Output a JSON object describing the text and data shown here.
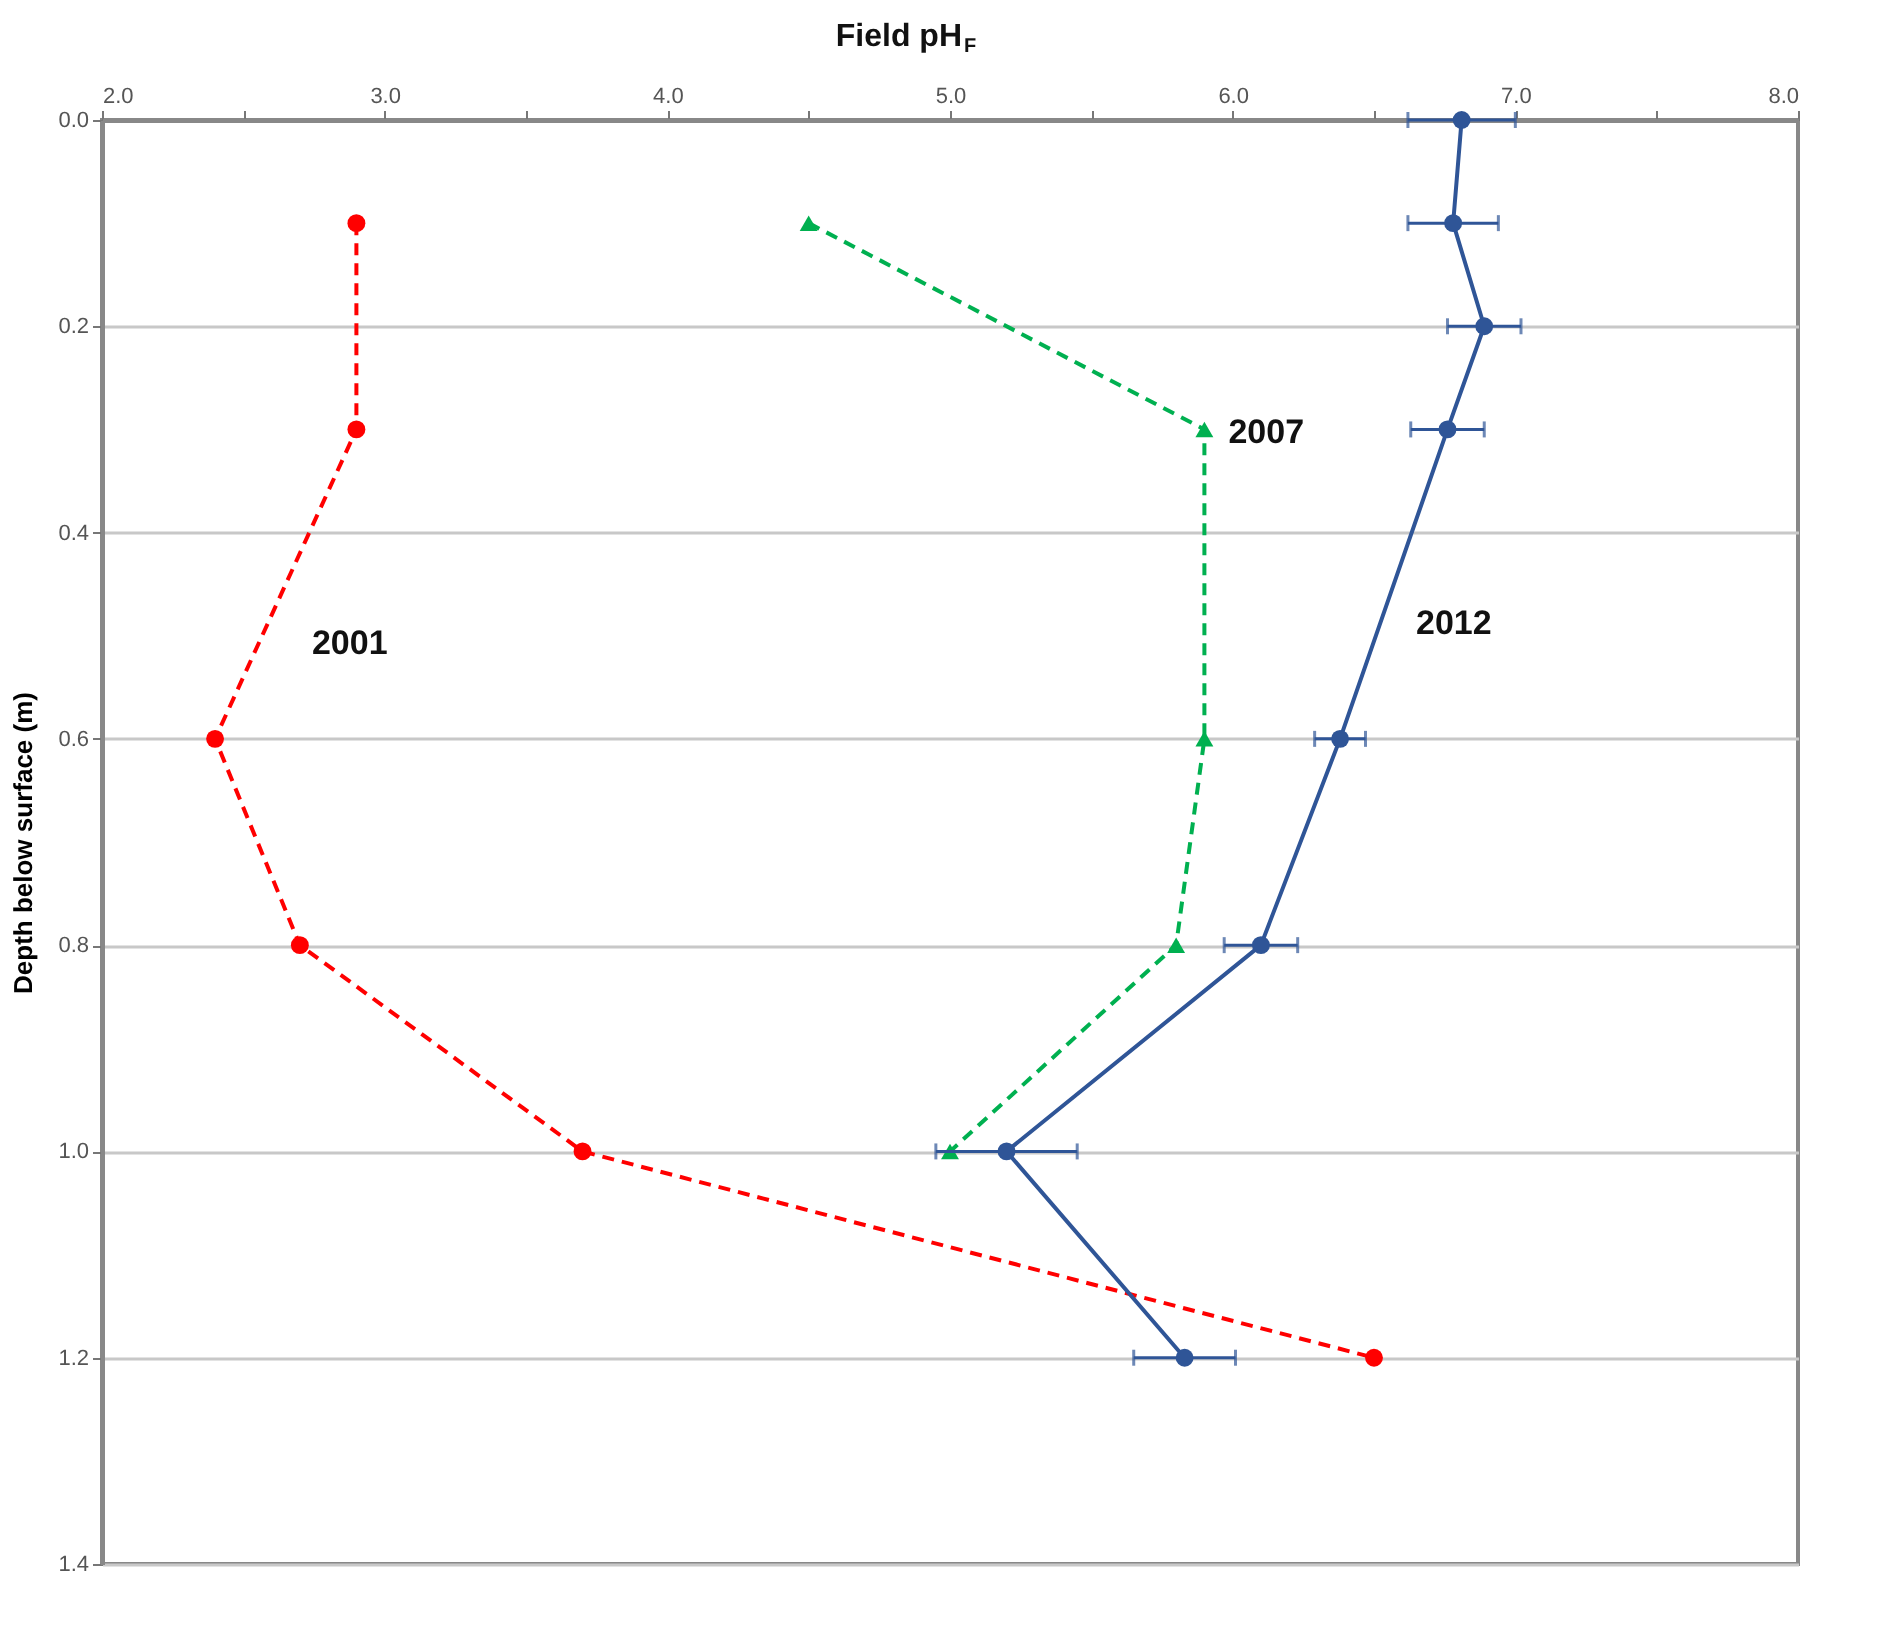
{
  "chart_data": {
    "type": "line",
    "xlabel": "Field pH$_{F}$",
    "ylabel": "Depth below surface (m)",
    "xlim": [
      2.0,
      8.0
    ],
    "xticks": [
      {
        "value": 2,
        "label": "2.0"
      },
      {
        "value": 2.5,
        "label": null
      },
      {
        "value": 3,
        "label": "3.0"
      },
      {
        "value": 3.5,
        "label": null
      },
      {
        "value": 4,
        "label": "4.0"
      },
      {
        "value": 4.5,
        "label": null
      },
      {
        "value": 5,
        "label": "5.0"
      },
      {
        "value": 5.5,
        "label": null
      },
      {
        "value": 6,
        "label": "6.0"
      },
      {
        "value": 6.5,
        "label": null
      },
      {
        "value": 7,
        "label": "7.0"
      },
      {
        "value": 7.5,
        "label": null
      },
      {
        "value": 8,
        "label": "8.0"
      }
    ],
    "ylim": [
      1.4,
      0.0
    ],
    "yticks": [
      {
        "value": 0,
        "label": "0.0"
      },
      0.2,
      0.4,
      0.6,
      0.8,
      {
        "value": 1,
        "label": "1.0"
      },
      1.2,
      1.4
    ],
    "grid": "y",
    "series": [
      {
        "name": "2001",
        "color": "#ff0000",
        "marker": "circle",
        "line_style": "dashed",
        "x": [
          2.9,
          2.9,
          2.4,
          2.7,
          3.7,
          6.5
        ],
        "values": [
          0.1,
          0.3,
          0.6,
          0.8,
          1.0,
          1.2
        ]
      },
      {
        "name": "2007",
        "color": "#00b050",
        "marker": "triangle",
        "line_style": "dashed",
        "x": [
          4.5,
          5.9,
          5.9,
          5.8,
          5.0
        ],
        "values": [
          0.1,
          0.3,
          0.6,
          0.8,
          1.0
        ]
      },
      {
        "name": "2012",
        "color": "#2f5597",
        "marker": "circle",
        "line_style": "solid",
        "x": [
          6.81,
          6.78,
          6.89,
          6.76,
          6.38,
          6.1,
          5.2,
          5.83
        ],
        "values": [
          0.0,
          0.1,
          0.2,
          0.3,
          0.6,
          0.8,
          1.0,
          1.2
        ],
        "xerrors": [
          0.19,
          0.16,
          0.13,
          0.13,
          0.09,
          0.13,
          0.25,
          0.18
        ]
      }
    ]
  }
}
